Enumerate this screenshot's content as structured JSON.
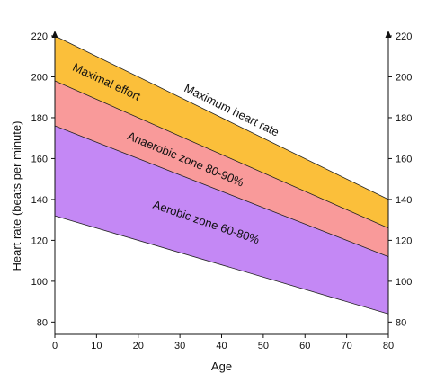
{
  "chart_data": {
    "type": "area",
    "xlabel": "Age",
    "ylabel": "Heart rate (beats per minute)",
    "xlim": [
      0,
      80
    ],
    "ylim": [
      74,
      220
    ],
    "x_ticks": [
      0,
      10,
      20,
      30,
      40,
      50,
      60,
      70,
      80
    ],
    "y_ticks_left": [
      80,
      100,
      120,
      140,
      160,
      180,
      200,
      220
    ],
    "y_ticks_right": [
      80,
      100,
      120,
      140,
      160,
      180,
      200,
      220
    ],
    "boundaries": [
      {
        "id": "max",
        "x": [
          0,
          80
        ],
        "y": [
          220,
          140
        ]
      },
      {
        "id": "p90",
        "x": [
          0,
          80
        ],
        "y": [
          198,
          126
        ]
      },
      {
        "id": "p80",
        "x": [
          0,
          80
        ],
        "y": [
          176,
          112
        ]
      },
      {
        "id": "p60",
        "x": [
          0,
          80
        ],
        "y": [
          132,
          84
        ]
      }
    ],
    "bands": [
      {
        "label": "Maximal effort",
        "upper": "max",
        "lower": "p90",
        "color": "#fbbf3a"
      },
      {
        "label": "Anaerobic zone 80-90%",
        "upper": "p90",
        "lower": "p80",
        "color": "#f99a9a"
      },
      {
        "label": "Aerobic zone 60-80%",
        "upper": "p80",
        "lower": "p60",
        "color": "#c488f5"
      }
    ],
    "line_labels": [
      {
        "label": "Maximum heart rate",
        "line": "max"
      }
    ],
    "grid": false,
    "legend": "none"
  }
}
